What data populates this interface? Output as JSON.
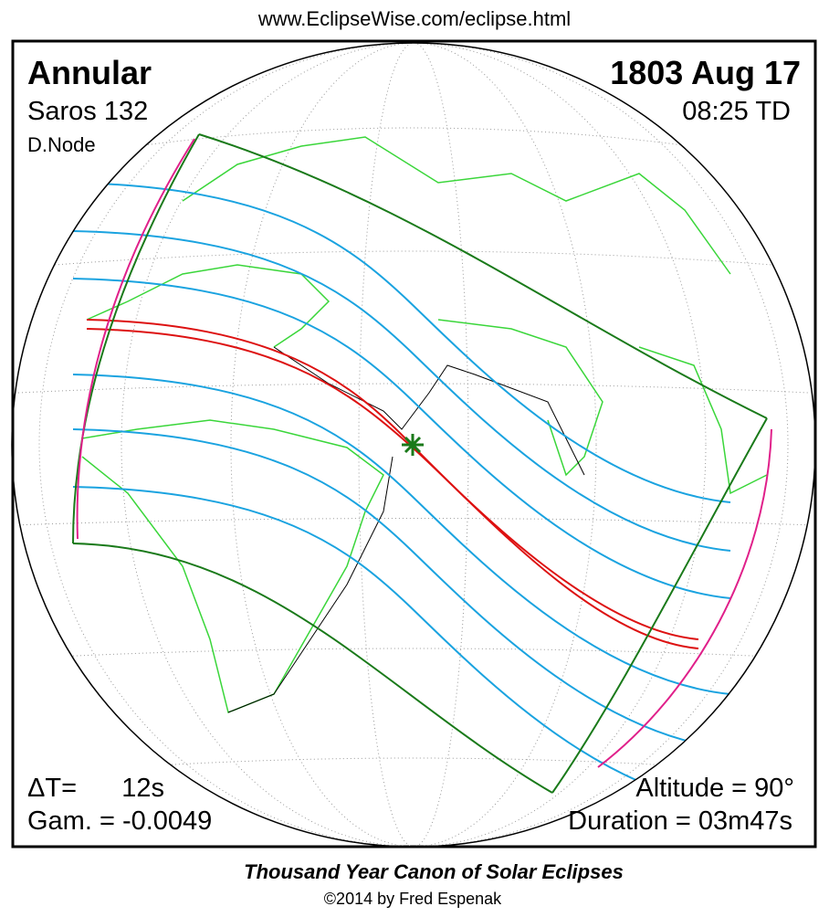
{
  "header": {
    "url": "www.EclipseWise.com/eclipse.html",
    "type": "Annular",
    "date": "1803 Aug 17",
    "saros": "Saros 132",
    "time": "08:25 TD",
    "node": "D.Node"
  },
  "footer_left": {
    "delta_t_label": "ΔT=",
    "delta_t": "12s",
    "gamma": "Gam. = -0.0049"
  },
  "footer_right": {
    "altitude": "Altitude = 90°",
    "duration": "Duration = 03m47s"
  },
  "credits": {
    "title": "Thousand Year Canon of Solar Eclipses",
    "copyright": "©2014 by Fred Espenak"
  }
}
